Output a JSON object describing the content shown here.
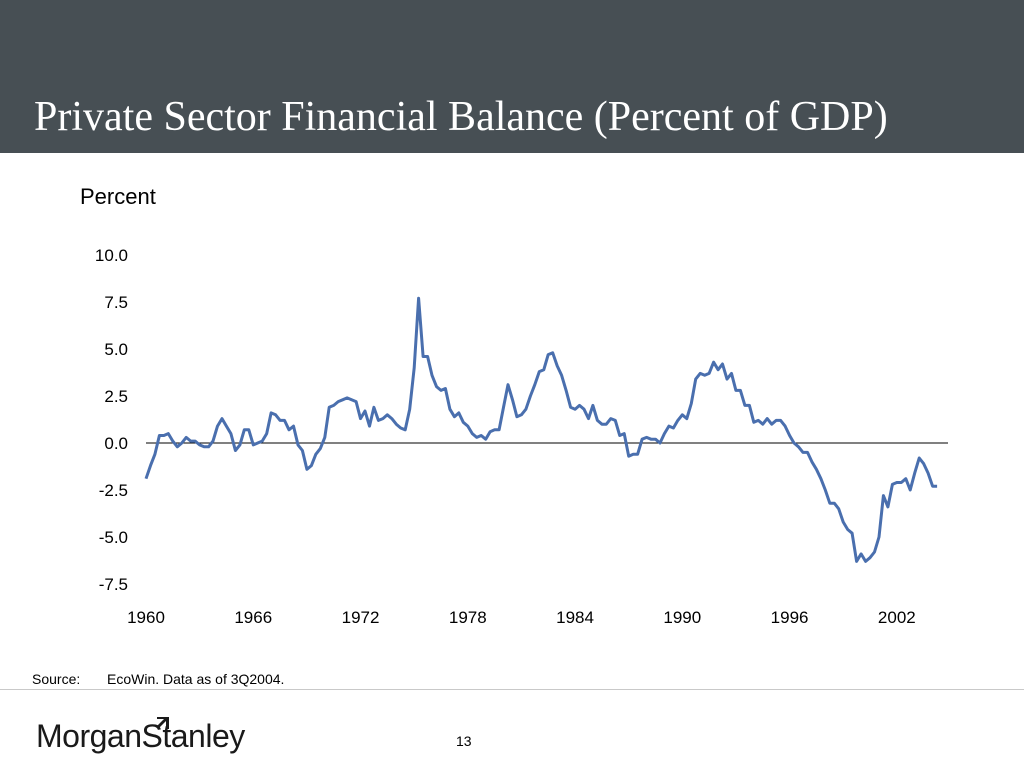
{
  "slide": {
    "title": "Private Sector Financial Balance (Percent of GDP)",
    "source_label": "Source:",
    "source_text": "EcoWin. Data as of 3Q2004.",
    "page_number": "13",
    "logo_text": "MorganStanley",
    "logo_icon": "morgan-stanley-slash-icon",
    "header_color": "#474f54"
  },
  "chart_data": {
    "type": "line",
    "title": "",
    "xlabel": "",
    "ylabel": "Percent",
    "xlim": [
      1960,
      2004.75
    ],
    "ylim": [
      -7.5,
      10.0
    ],
    "y_ticks": [
      "10.0",
      "7.5",
      "5.0",
      "2.5",
      "0.0",
      "-2.5",
      "-5.0",
      "-7.5"
    ],
    "y_tick_values": [
      10.0,
      7.5,
      5.0,
      2.5,
      0.0,
      -2.5,
      -5.0,
      -7.5
    ],
    "x_ticks": [
      "1960",
      "1966",
      "1972",
      "1978",
      "1984",
      "1990",
      "1996",
      "2002"
    ],
    "x_tick_values": [
      1960,
      1966,
      1972,
      1978,
      1984,
      1990,
      1996,
      2002
    ],
    "zero_line": true,
    "grid": false,
    "line_color": "#4a6fae",
    "series": [
      {
        "values": [
          [
            1960.0,
            -1.9
          ],
          [
            1960.25,
            -1.2
          ],
          [
            1960.5,
            -0.6
          ],
          [
            1960.75,
            0.4
          ],
          [
            1961.0,
            0.4
          ],
          [
            1961.25,
            0.5
          ],
          [
            1961.5,
            0.1
          ],
          [
            1961.75,
            -0.2
          ],
          [
            1962.0,
            0.0
          ],
          [
            1962.25,
            0.3
          ],
          [
            1962.5,
            0.1
          ],
          [
            1962.75,
            0.1
          ],
          [
            1963.0,
            -0.1
          ],
          [
            1963.25,
            -0.2
          ],
          [
            1963.5,
            -0.2
          ],
          [
            1963.75,
            0.1
          ],
          [
            1964.0,
            0.9
          ],
          [
            1964.25,
            1.3
          ],
          [
            1964.5,
            0.9
          ],
          [
            1964.75,
            0.5
          ],
          [
            1965.0,
            -0.4
          ],
          [
            1965.25,
            -0.1
          ],
          [
            1965.5,
            0.7
          ],
          [
            1965.75,
            0.7
          ],
          [
            1966.0,
            -0.1
          ],
          [
            1966.25,
            0.0
          ],
          [
            1966.5,
            0.1
          ],
          [
            1966.75,
            0.5
          ],
          [
            1967.0,
            1.6
          ],
          [
            1967.25,
            1.5
          ],
          [
            1967.5,
            1.2
          ],
          [
            1967.75,
            1.2
          ],
          [
            1968.0,
            0.7
          ],
          [
            1968.25,
            0.9
          ],
          [
            1968.5,
            -0.1
          ],
          [
            1968.75,
            -0.4
          ],
          [
            1969.0,
            -1.4
          ],
          [
            1969.25,
            -1.2
          ],
          [
            1969.5,
            -0.6
          ],
          [
            1969.75,
            -0.3
          ],
          [
            1970.0,
            0.3
          ],
          [
            1970.25,
            1.9
          ],
          [
            1970.5,
            2.0
          ],
          [
            1970.75,
            2.2
          ],
          [
            1971.0,
            2.3
          ],
          [
            1971.25,
            2.4
          ],
          [
            1971.5,
            2.3
          ],
          [
            1971.75,
            2.2
          ],
          [
            1972.0,
            1.3
          ],
          [
            1972.25,
            1.7
          ],
          [
            1972.5,
            0.9
          ],
          [
            1972.75,
            1.9
          ],
          [
            1973.0,
            1.2
          ],
          [
            1973.25,
            1.3
          ],
          [
            1973.5,
            1.5
          ],
          [
            1973.75,
            1.3
          ],
          [
            1974.0,
            1.0
          ],
          [
            1974.25,
            0.8
          ],
          [
            1974.5,
            0.7
          ],
          [
            1974.75,
            1.8
          ],
          [
            1975.0,
            4.0
          ],
          [
            1975.25,
            7.7
          ],
          [
            1975.5,
            4.6
          ],
          [
            1975.75,
            4.6
          ],
          [
            1976.0,
            3.6
          ],
          [
            1976.25,
            3.0
          ],
          [
            1976.5,
            2.8
          ],
          [
            1976.75,
            2.9
          ],
          [
            1977.0,
            1.8
          ],
          [
            1977.25,
            1.4
          ],
          [
            1977.5,
            1.6
          ],
          [
            1977.75,
            1.1
          ],
          [
            1978.0,
            0.9
          ],
          [
            1978.25,
            0.5
          ],
          [
            1978.5,
            0.3
          ],
          [
            1978.75,
            0.4
          ],
          [
            1979.0,
            0.2
          ],
          [
            1979.25,
            0.6
          ],
          [
            1979.5,
            0.7
          ],
          [
            1979.75,
            0.7
          ],
          [
            1980.0,
            1.9
          ],
          [
            1980.25,
            3.1
          ],
          [
            1980.5,
            2.3
          ],
          [
            1980.75,
            1.4
          ],
          [
            1981.0,
            1.5
          ],
          [
            1981.25,
            1.8
          ],
          [
            1981.5,
            2.5
          ],
          [
            1981.75,
            3.1
          ],
          [
            1982.0,
            3.8
          ],
          [
            1982.25,
            3.9
          ],
          [
            1982.5,
            4.7
          ],
          [
            1982.75,
            4.8
          ],
          [
            1983.0,
            4.1
          ],
          [
            1983.25,
            3.6
          ],
          [
            1983.5,
            2.8
          ],
          [
            1983.75,
            1.9
          ],
          [
            1984.0,
            1.8
          ],
          [
            1984.25,
            2.0
          ],
          [
            1984.5,
            1.8
          ],
          [
            1984.75,
            1.3
          ],
          [
            1985.0,
            2.0
          ],
          [
            1985.25,
            1.2
          ],
          [
            1985.5,
            1.0
          ],
          [
            1985.75,
            1.0
          ],
          [
            1986.0,
            1.3
          ],
          [
            1986.25,
            1.2
          ],
          [
            1986.5,
            0.4
          ],
          [
            1986.75,
            0.5
          ],
          [
            1987.0,
            -0.7
          ],
          [
            1987.25,
            -0.6
          ],
          [
            1987.5,
            -0.6
          ],
          [
            1987.75,
            0.2
          ],
          [
            1988.0,
            0.3
          ],
          [
            1988.25,
            0.2
          ],
          [
            1988.5,
            0.2
          ],
          [
            1988.75,
            0.0
          ],
          [
            1989.0,
            0.5
          ],
          [
            1989.25,
            0.9
          ],
          [
            1989.5,
            0.8
          ],
          [
            1989.75,
            1.2
          ],
          [
            1990.0,
            1.5
          ],
          [
            1990.25,
            1.3
          ],
          [
            1990.5,
            2.1
          ],
          [
            1990.75,
            3.4
          ],
          [
            1991.0,
            3.7
          ],
          [
            1991.25,
            3.6
          ],
          [
            1991.5,
            3.7
          ],
          [
            1991.75,
            4.3
          ],
          [
            1992.0,
            3.9
          ],
          [
            1992.25,
            4.2
          ],
          [
            1992.5,
            3.4
          ],
          [
            1992.75,
            3.7
          ],
          [
            1993.0,
            2.8
          ],
          [
            1993.25,
            2.8
          ],
          [
            1993.5,
            2.0
          ],
          [
            1993.75,
            2.0
          ],
          [
            1994.0,
            1.1
          ],
          [
            1994.25,
            1.2
          ],
          [
            1994.5,
            1.0
          ],
          [
            1994.75,
            1.3
          ],
          [
            1995.0,
            1.0
          ],
          [
            1995.25,
            1.2
          ],
          [
            1995.5,
            1.2
          ],
          [
            1995.75,
            0.9
          ],
          [
            1996.0,
            0.4
          ],
          [
            1996.25,
            0.0
          ],
          [
            1996.5,
            -0.2
          ],
          [
            1996.75,
            -0.5
          ],
          [
            1997.0,
            -0.5
          ],
          [
            1997.25,
            -1.0
          ],
          [
            1997.5,
            -1.4
          ],
          [
            1997.75,
            -1.9
          ],
          [
            1998.0,
            -2.5
          ],
          [
            1998.25,
            -3.2
          ],
          [
            1998.5,
            -3.2
          ],
          [
            1998.75,
            -3.5
          ],
          [
            1999.0,
            -4.2
          ],
          [
            1999.25,
            -4.6
          ],
          [
            1999.5,
            -4.8
          ],
          [
            1999.75,
            -6.3
          ],
          [
            2000.0,
            -5.9
          ],
          [
            2000.25,
            -6.3
          ],
          [
            2000.5,
            -6.1
          ],
          [
            2000.75,
            -5.8
          ],
          [
            2001.0,
            -5.0
          ],
          [
            2001.25,
            -2.8
          ],
          [
            2001.5,
            -3.4
          ],
          [
            2001.75,
            -2.2
          ],
          [
            2002.0,
            -2.1
          ],
          [
            2002.25,
            -2.1
          ],
          [
            2002.5,
            -1.9
          ],
          [
            2002.75,
            -2.5
          ],
          [
            2003.0,
            -1.6
          ],
          [
            2003.25,
            -0.8
          ],
          [
            2003.5,
            -1.1
          ],
          [
            2003.75,
            -1.6
          ],
          [
            2004.0,
            -2.3
          ],
          [
            2004.25,
            -2.3
          ]
        ]
      }
    ]
  }
}
